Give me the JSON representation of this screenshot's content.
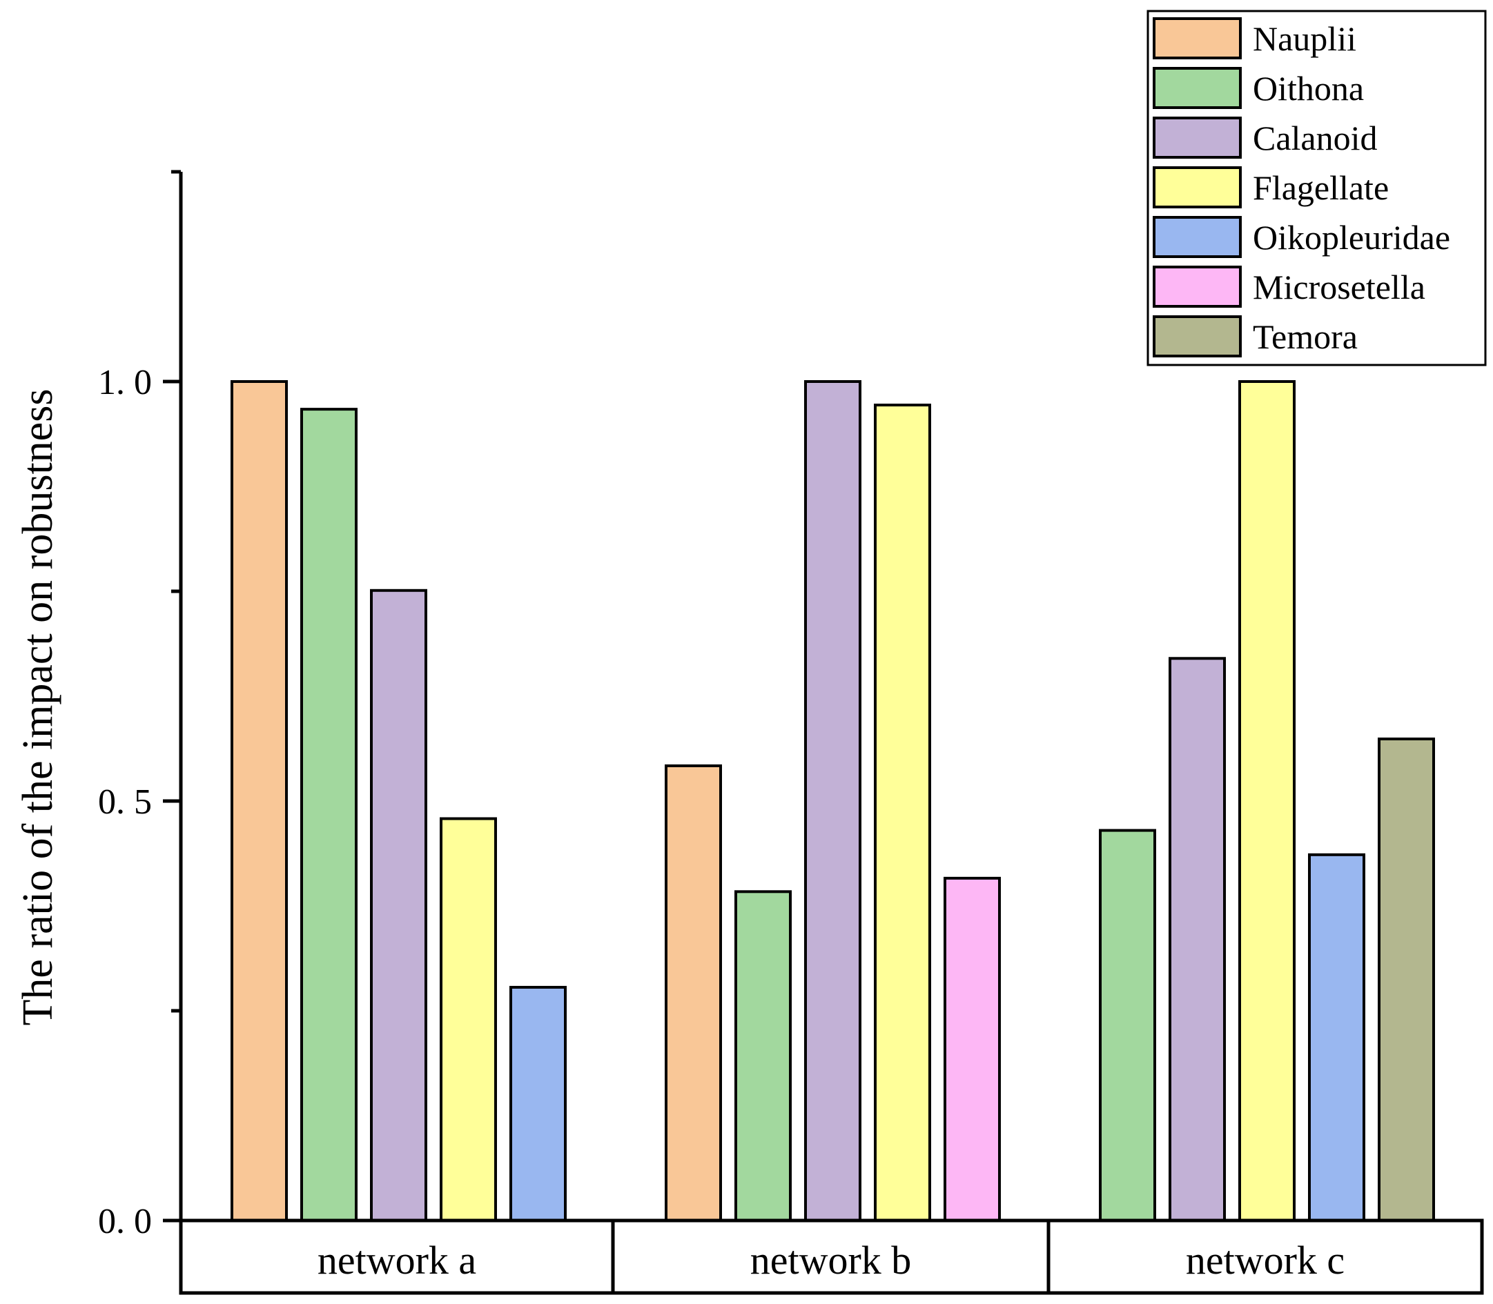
{
  "chart_data": {
    "type": "bar",
    "title": "",
    "xlabel": "",
    "ylabel": "The ratio of the impact on robustness",
    "ylim": [
      0,
      1.25
    ],
    "y_ticks": [
      {
        "value": 0.0,
        "label": "0. 0"
      },
      {
        "value": 0.5,
        "label": "0. 5"
      },
      {
        "value": 1.0,
        "label": "1. 0"
      }
    ],
    "y_minor_ticks": [
      0.25,
      0.75,
      1.25
    ],
    "categories": [
      "network a",
      "network b",
      "network c"
    ],
    "series": [
      {
        "name": "Nauplii",
        "color": "#F9C797",
        "values": [
          1.0,
          0.542,
          null
        ]
      },
      {
        "name": "Oithona",
        "color": "#A2D89E",
        "values": [
          0.967,
          0.392,
          0.465
        ]
      },
      {
        "name": "Calanoid",
        "color": "#C2B1D6",
        "values": [
          0.751,
          1.0,
          0.67
        ]
      },
      {
        "name": "Flagellate",
        "color": "#FFFF99",
        "values": [
          0.479,
          0.972,
          1.0
        ]
      },
      {
        "name": "Oikopleuridae",
        "color": "#99B7F0",
        "values": [
          0.278,
          null,
          0.436
        ]
      },
      {
        "name": "Microsetella",
        "color": "#FDB7F5",
        "values": [
          null,
          0.408,
          null
        ]
      },
      {
        "name": "Temora",
        "color": "#B3B78F",
        "values": [
          null,
          null,
          0.574
        ]
      }
    ],
    "legend_position": "top-right",
    "grid": false
  }
}
